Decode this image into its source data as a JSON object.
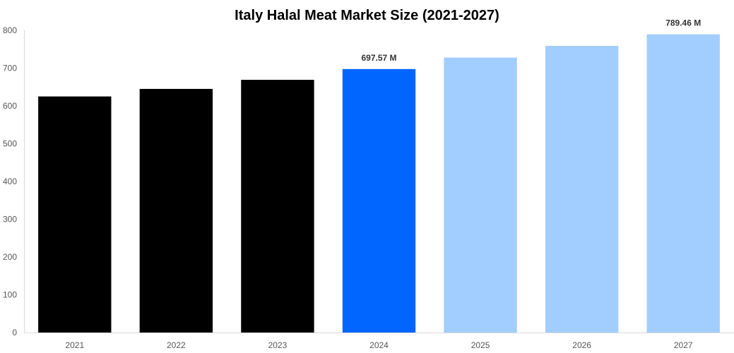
{
  "chart_data": {
    "type": "bar",
    "title": "Italy Halal Meat Market Size (2021-2027)",
    "xlabel": "",
    "ylabel": "",
    "categories": [
      "2021",
      "2022",
      "2023",
      "2024",
      "2025",
      "2026",
      "2027"
    ],
    "values": [
      625,
      645,
      669,
      697.57,
      728,
      759,
      789.46
    ],
    "bar_colors": [
      "#000000",
      "#000000",
      "#000000",
      "#0066ff",
      "#a2cdff",
      "#a2cdff",
      "#a2cdff"
    ],
    "data_labels": [
      {
        "category": "2024",
        "text": "697.57 M"
      },
      {
        "category": "2027",
        "text": "789.46 M"
      }
    ],
    "ylim": [
      0,
      800
    ],
    "yticks": [
      0,
      100,
      200,
      300,
      400,
      500,
      600,
      700,
      800
    ],
    "grid": false,
    "legend": "none"
  }
}
